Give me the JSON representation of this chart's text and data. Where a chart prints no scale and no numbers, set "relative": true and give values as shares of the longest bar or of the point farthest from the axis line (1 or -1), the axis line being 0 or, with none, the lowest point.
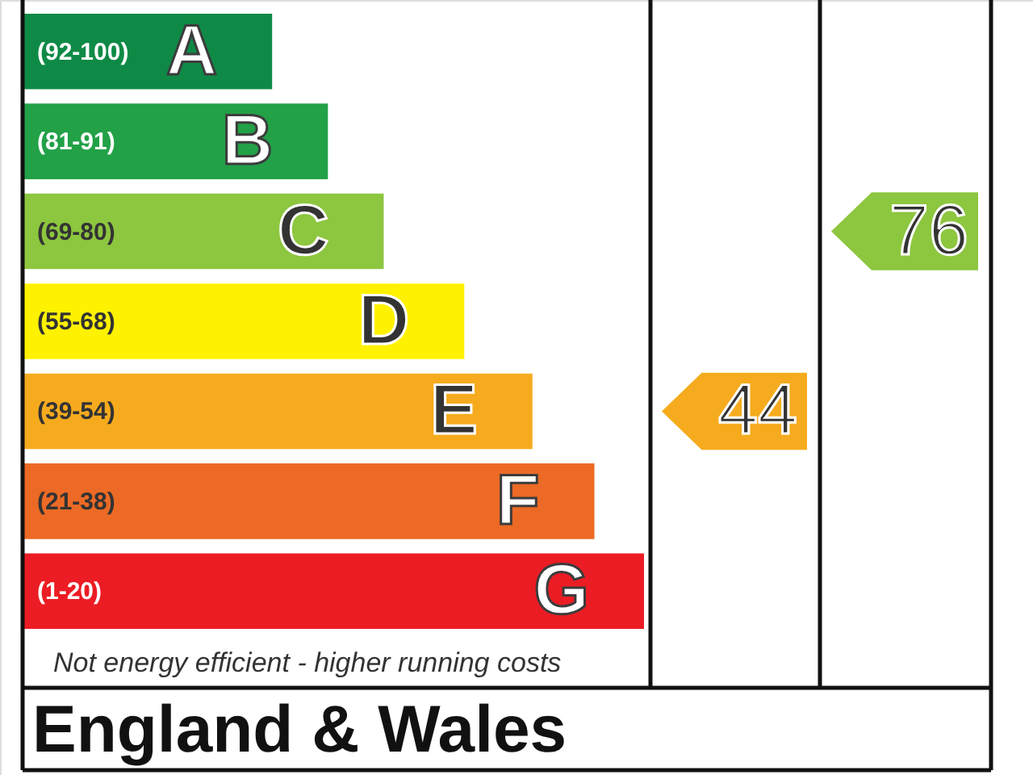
{
  "chart_data": {
    "type": "bar",
    "orientation": "horizontal",
    "relative": true,
    "categories": [
      "A",
      "B",
      "C",
      "D",
      "E",
      "F",
      "G"
    ],
    "values": [
      0.4,
      0.49,
      0.58,
      0.71,
      0.82,
      0.92,
      1
    ],
    "colors": [
      "#0e8a46",
      "#22a147",
      "#8dc63f",
      "#fff200",
      "#f6ab1e",
      "#ec6a25",
      "#ec1c24"
    ],
    "annotations": [
      "(92-100)",
      "(81-91)",
      "(69-80)",
      "(55-68)",
      "(39-54)",
      "(21-38)",
      "(1-20)",
      "44",
      "76",
      "Not energy efficient - higher running costs",
      "England & Wales"
    ]
  }
}
